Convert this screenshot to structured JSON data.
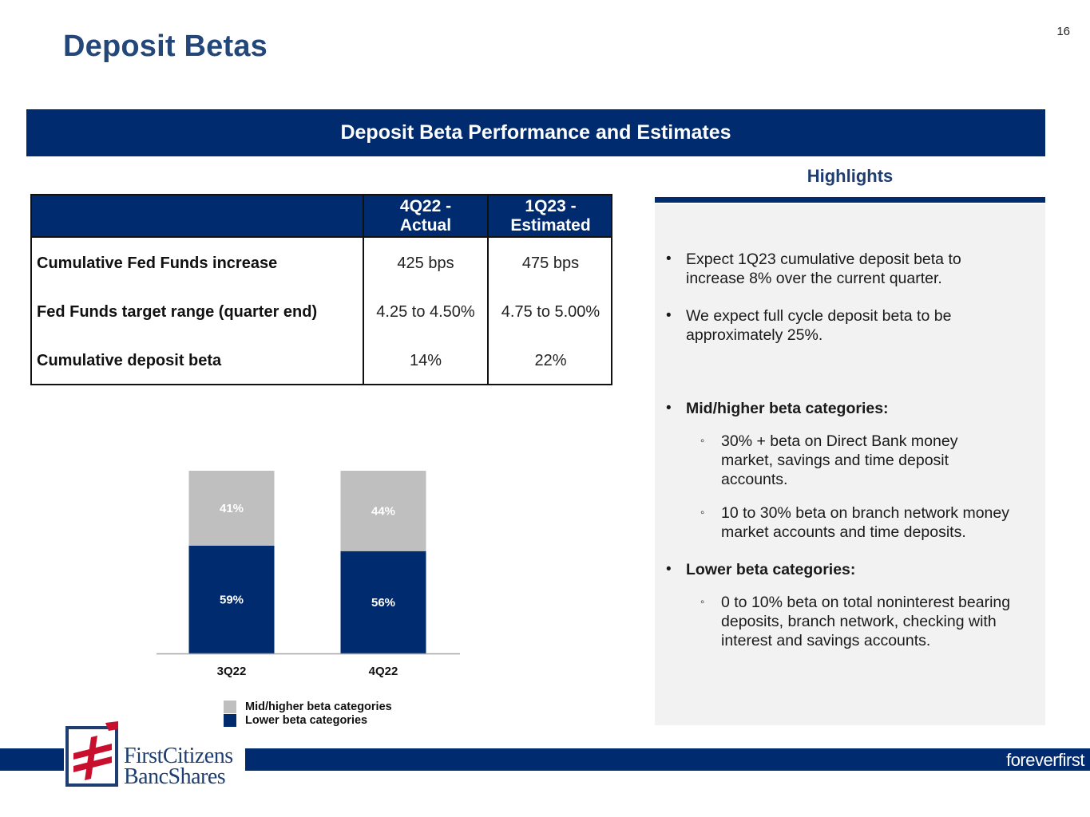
{
  "page": {
    "number": "16",
    "title": "Deposit Betas"
  },
  "section_banner": "Deposit Beta Performance and Estimates",
  "table": {
    "columns": [
      "4Q22 -\nActual",
      "1Q23 -\nEstimated"
    ],
    "rows": [
      {
        "label": "Cumulative Fed Funds increase",
        "values": [
          "425 bps",
          "475 bps"
        ]
      },
      {
        "label": "Fed Funds target range (quarter end)",
        "values": [
          "4.25 to 4.50%",
          "4.75 to 5.00%"
        ]
      },
      {
        "label": "Cumulative deposit beta",
        "values": [
          "14%",
          "22%"
        ]
      }
    ]
  },
  "highlights": {
    "title": "Highlights",
    "bullets": [
      "Expect 1Q23 cumulative deposit beta to increase 8% over the current quarter.",
      "We expect full cycle deposit beta to be approximately 25%."
    ],
    "mid_higher": {
      "heading": "Mid/higher beta categories:",
      "items": [
        "30% + beta on Direct Bank money market, savings and time deposit accounts.",
        "10 to 30% beta on branch network money market accounts and time deposits."
      ]
    },
    "lower": {
      "heading": "Lower beta categories:",
      "items": [
        "0 to 10% beta on total noninterest bearing deposits, branch network, checking with interest and savings accounts."
      ]
    }
  },
  "chart_data": {
    "type": "bar",
    "stacked": true,
    "categories": [
      "3Q22",
      "4Q22"
    ],
    "series": [
      {
        "name": "Lower beta categories",
        "values": [
          59,
          56
        ],
        "labels": [
          "59%",
          "56%"
        ],
        "color": "#002b6e"
      },
      {
        "name": "Mid/higher beta categories",
        "values": [
          41,
          44
        ],
        "labels": [
          "41%",
          "44%"
        ],
        "color": "#bfbfbf"
      }
    ],
    "ylim": [
      0,
      100
    ],
    "title": "",
    "xlabel": "",
    "ylabel": "",
    "legend": [
      "Mid/higher beta categories",
      "Lower beta categories"
    ],
    "legend_position": "bottom"
  },
  "footer": {
    "logo_line1": "FirstCitizens",
    "logo_line2": "BancShares",
    "tagline": "foreverfirst"
  },
  "colors": {
    "navy": "#002b6e",
    "title_blue": "#24477a",
    "gray_bar": "#bfbfbf",
    "panel": "#f2f2f2",
    "logo_red": "#c8102e"
  }
}
